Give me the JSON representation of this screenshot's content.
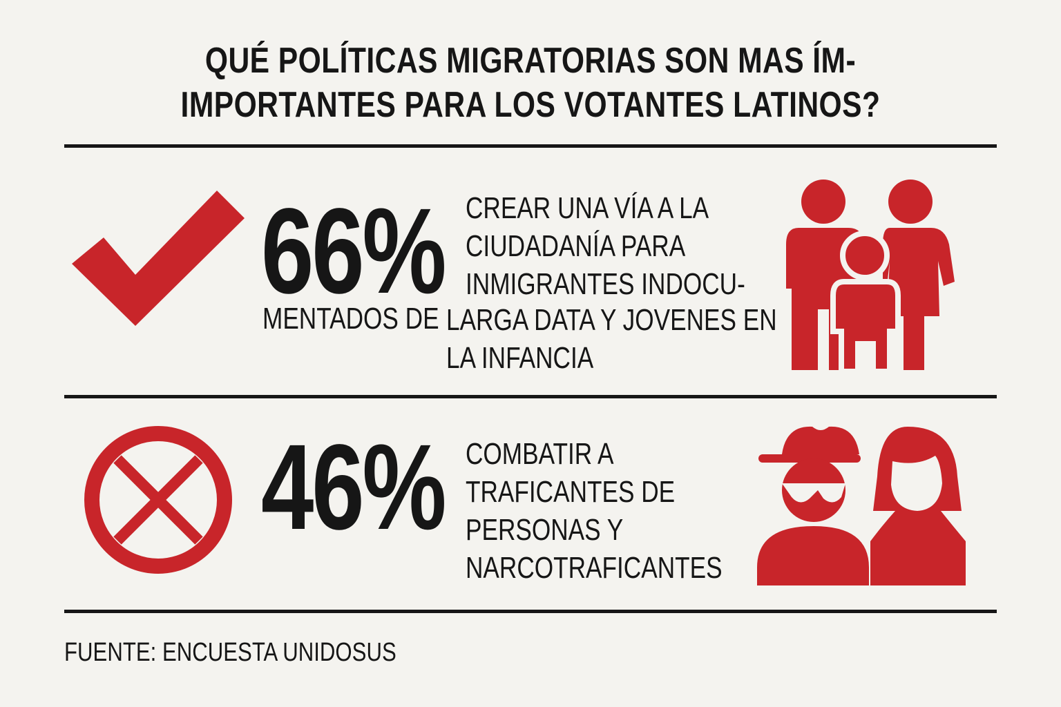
{
  "title": {
    "line1": "QUÉ POLÍTICAS MIGRATORIAS SON MAS ÍM-",
    "line2": "IMPORTANTES PARA LOS VOTANTES LATINOS?"
  },
  "items": [
    {
      "percent": "66%",
      "lines": [
        "CREAR UNA VÍA A LA",
        "CIUDADANÍA PARA",
        "INMIGRANTES INDOCU-"
      ],
      "left_line": "MENTADOS DE",
      "lines_after": [
        "LARGA DATA Y JOVENES EN",
        "LA INFANCIA"
      ],
      "status_icon": "checkmark-icon",
      "illustration": "family-icon",
      "color": "#c8252a"
    },
    {
      "percent": "46%",
      "lines": [
        "COMBATIR A",
        "TRAFICANTES DE",
        "PERSONAS Y",
        "NARCOTRAFICANTES"
      ],
      "status_icon": "prohibited-x-icon",
      "illustration": "trafficker-and-person-icon",
      "color": "#c8252a"
    }
  ],
  "source": "FUENTE: ENCUESTA UNIDOSUS",
  "colors": {
    "accent": "#c8252a",
    "ink": "#161616",
    "background": "#f4f3ef"
  }
}
